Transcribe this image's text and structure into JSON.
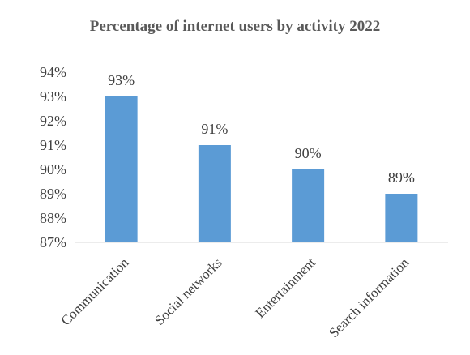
{
  "chart_data": {
    "type": "bar",
    "title": "Percentage of internet users by activity 2022",
    "categories": [
      "Communication",
      "Social networks",
      "Entertainment",
      "Search information"
    ],
    "values": [
      93,
      91,
      90,
      89
    ],
    "data_labels": [
      "93%",
      "91%",
      "90%",
      "89%"
    ],
    "y_ticks": [
      "87%",
      "88%",
      "89%",
      "90%",
      "91%",
      "92%",
      "93%",
      "94%"
    ],
    "ylim": [
      87,
      94
    ],
    "xlabel": "",
    "ylabel": "",
    "grid": false,
    "legend": "none",
    "bar_color": "#5B9BD5"
  }
}
